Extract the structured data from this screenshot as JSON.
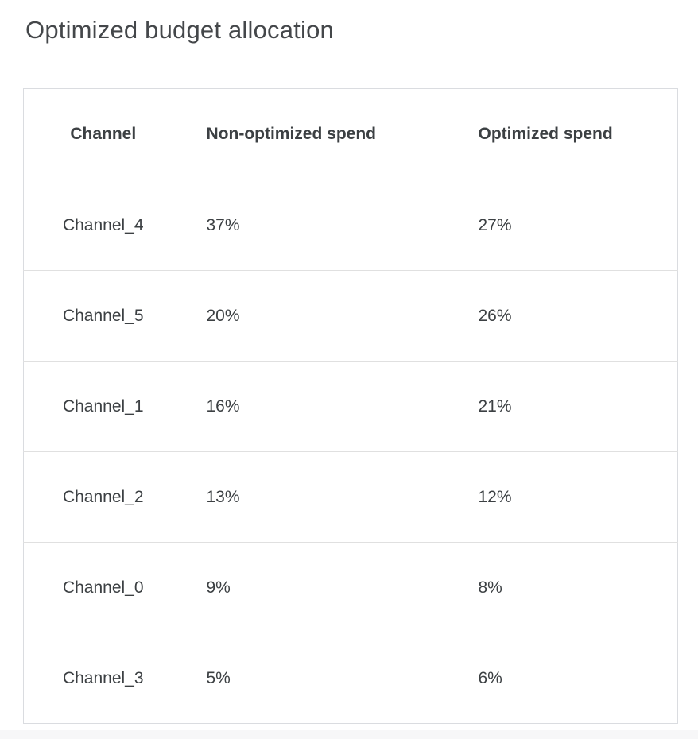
{
  "title": "Optimized budget allocation",
  "table": {
    "columns": [
      "Channel",
      "Non-optimized spend",
      "Optimized spend"
    ],
    "rows": [
      {
        "channel": "Channel_4",
        "non_optimized": "37%",
        "optimized": "27%"
      },
      {
        "channel": "Channel_5",
        "non_optimized": "20%",
        "optimized": "26%"
      },
      {
        "channel": "Channel_1",
        "non_optimized": "16%",
        "optimized": "21%"
      },
      {
        "channel": "Channel_2",
        "non_optimized": "13%",
        "optimized": "12%"
      },
      {
        "channel": "Channel_0",
        "non_optimized": "9%",
        "optimized": "8%"
      },
      {
        "channel": "Channel_3",
        "non_optimized": "5%",
        "optimized": "6%"
      }
    ]
  },
  "colors": {
    "title_text": "#44474a",
    "table_text": "#3c4043",
    "table_border": "#dadce0",
    "row_divider": "#e0e0e0",
    "background": "#ffffff",
    "bottom_strip": "#f7f7f8"
  }
}
